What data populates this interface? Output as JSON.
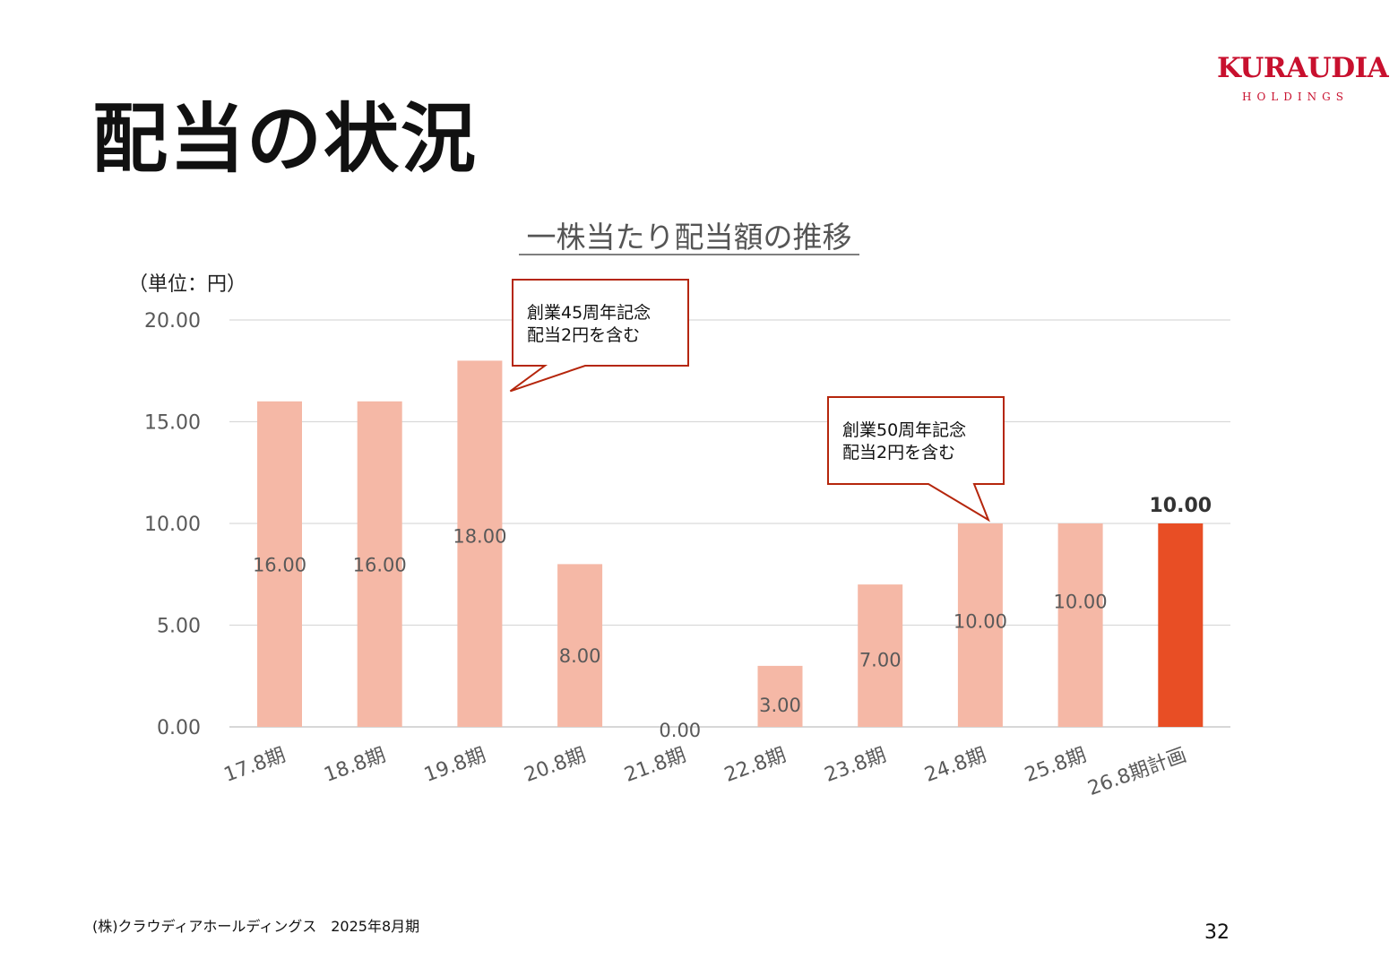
{
  "header": {
    "title": "配当の状況",
    "logo_main": "KURAUDIA",
    "logo_sub": "HOLDINGS"
  },
  "chart_data": {
    "type": "bar",
    "title": "一株当たり配当額の推移",
    "unit_label": "（単位：円）",
    "categories": [
      "17.8期",
      "18.8期",
      "19.8期",
      "20.8期",
      "21.8期",
      "22.8期",
      "23.8期",
      "24.8期",
      "25.8期",
      "26.8期計画"
    ],
    "values": [
      16,
      16,
      18,
      8,
      0,
      3,
      7,
      10,
      10,
      10
    ],
    "value_labels": [
      "16.00",
      "16.00",
      "18.00",
      "8.00",
      "0.00",
      "3.00",
      "7.00",
      "10.00",
      "10.00",
      "10.00"
    ],
    "yticks": [
      "0.00",
      "5.00",
      "10.00",
      "15.00",
      "20.00"
    ],
    "ylim": [
      0,
      20
    ],
    "grid": true,
    "legend": "none",
    "colors": {
      "actual": "#f5b8a6",
      "plan": "#e84e25",
      "callout_border": "#b5260c"
    },
    "callouts": [
      {
        "lines": [
          "創業45周年記念",
          "配当2円を含む"
        ],
        "category": "19.8期"
      },
      {
        "lines": [
          "創業50周年記念",
          "配当2円を含む"
        ],
        "category": "24.8期"
      }
    ]
  },
  "footer": {
    "company": "(株)クラウディアホールディングス　2025年8月期",
    "page_number": "32"
  }
}
